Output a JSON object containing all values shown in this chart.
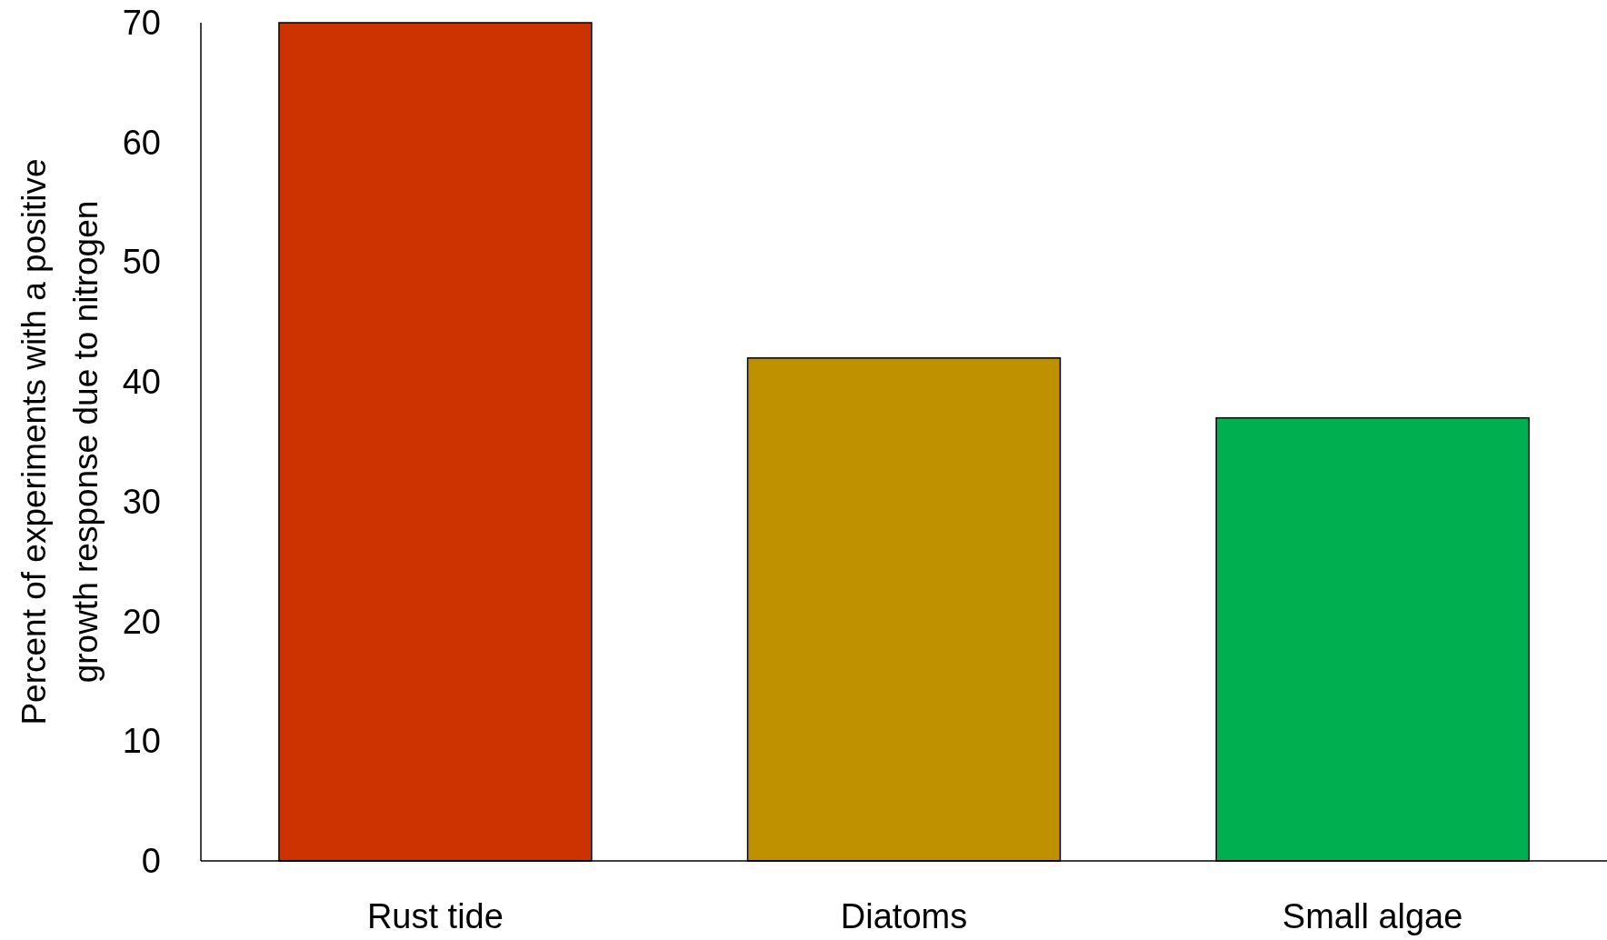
{
  "chart_data": {
    "type": "bar",
    "ylabel": "Percent of experiments with a positive\ngrowth response due to nitrogen",
    "categories": [
      "Rust tide",
      "Diatoms",
      "Small algae"
    ],
    "values": [
      70,
      42,
      37
    ],
    "colors": [
      "#cc3300",
      "#bf9000",
      "#00b050"
    ],
    "ylim": [
      0,
      70
    ],
    "yticks": [
      0,
      10,
      20,
      30,
      40,
      50,
      60,
      70
    ],
    "grid": false
  }
}
